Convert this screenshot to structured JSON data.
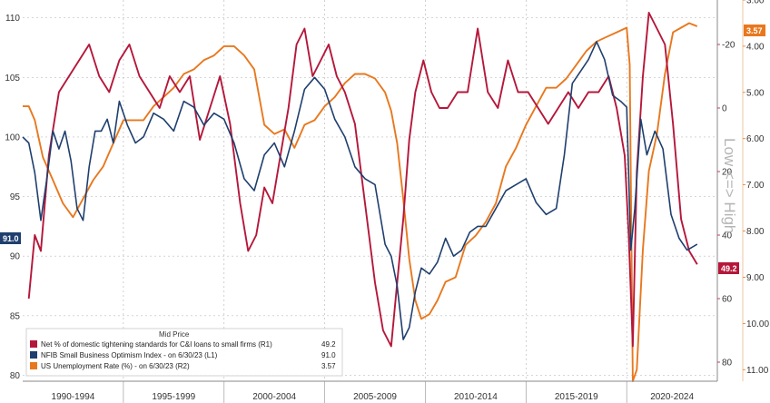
{
  "chart_data": {
    "type": "line",
    "x_labels": [
      "1990-1994",
      "1995-1999",
      "2000-2004",
      "2005-2009",
      "2010-2014",
      "2015-2019",
      "2020-2024"
    ],
    "x_range": [
      1990.0,
      2024.5
    ],
    "axis_l1": {
      "ticks": [
        "110",
        "105",
        "100",
        "95",
        "90",
        "85",
        "80"
      ],
      "range": [
        79.5,
        111.5
      ]
    },
    "axis_r1": {
      "ticks": [
        "-20",
        "0",
        "20",
        "40",
        "60",
        "80"
      ],
      "range": [
        -34,
        86
      ]
    },
    "axis_r2": {
      "ticks": [
        "3.00",
        "4.00",
        "5.00",
        "6.00",
        "7.00",
        "8.00",
        "9.00",
        "10.00",
        "11.00"
      ],
      "range": [
        3.0,
        11.25
      ],
      "inverted": true
    },
    "side_label": "Low <=> High",
    "legend": {
      "title": "Mid Price",
      "entries": [
        {
          "label": "Net % of domestic tightening standards for C&I loans to small firms  (R1)",
          "value": "49.2",
          "color": "#b5173a"
        },
        {
          "label": "NFIB Small Business Optimism Index  -  on 6/30/23  (L1)",
          "value": "91.0",
          "color": "#1f3f6e"
        },
        {
          "label": "US Unemployment Rate (%)  -  on 6/30/23  (R2)",
          "value": "3.57",
          "color": "#e8781e"
        }
      ]
    },
    "badges": {
      "nfib": "91.0",
      "tightening": "49.2",
      "unemployment": "3.57"
    },
    "series": [
      {
        "name": "NFIB Small Business Optimism Index",
        "axis": "L1",
        "color": "#1f3f6e",
        "x": [
          1990.0,
          1990.3,
          1990.6,
          1990.9,
          1991.2,
          1991.5,
          1991.8,
          1992.1,
          1992.4,
          1992.7,
          1993.0,
          1993.3,
          1993.6,
          1993.9,
          1994.2,
          1994.5,
          1994.8,
          1995.2,
          1995.6,
          1996.0,
          1996.5,
          1997.0,
          1997.5,
          1998.0,
          1998.5,
          1999.0,
          1999.5,
          2000.0,
          2000.5,
          2001.0,
          2001.5,
          2002.0,
          2002.5,
          2003.0,
          2003.5,
          2004.0,
          2004.5,
          2005.0,
          2005.5,
          2006.0,
          2006.5,
          2007.0,
          2007.5,
          2008.0,
          2008.3,
          2008.6,
          2008.9,
          2009.2,
          2009.5,
          2009.8,
          2010.2,
          2010.6,
          2011.0,
          2011.4,
          2011.8,
          2012.2,
          2012.6,
          2013.0,
          2013.5,
          2014.0,
          2014.5,
          2015.0,
          2015.5,
          2016.0,
          2016.5,
          2016.9,
          2017.3,
          2017.7,
          2018.1,
          2018.5,
          2018.9,
          2019.3,
          2019.7,
          2020.0,
          2020.2,
          2020.4,
          2020.7,
          2021.0,
          2021.4,
          2021.8,
          2022.2,
          2022.6,
          2023.0,
          2023.5
        ],
        "y": [
          100.0,
          99.5,
          97.0,
          93.0,
          96.5,
          100.5,
          99.0,
          100.5,
          98.0,
          94.0,
          93.0,
          97.5,
          100.5,
          100.5,
          101.5,
          99.5,
          103.0,
          101.0,
          99.5,
          100.0,
          102.0,
          101.5,
          100.5,
          103.0,
          102.5,
          101.0,
          102.0,
          101.5,
          99.5,
          96.5,
          95.5,
          98.5,
          99.5,
          97.5,
          100.5,
          104.0,
          105.0,
          104.0,
          101.5,
          100.0,
          97.5,
          96.5,
          96.0,
          91.0,
          90.0,
          87.5,
          83.0,
          84.0,
          87.0,
          89.0,
          88.5,
          89.5,
          91.5,
          90.0,
          90.5,
          92.0,
          92.5,
          92.5,
          94.0,
          95.5,
          96.0,
          96.5,
          94.5,
          93.5,
          94.0,
          98.5,
          104.5,
          105.5,
          106.5,
          108.0,
          106.5,
          103.5,
          103.0,
          102.5,
          90.5,
          94.0,
          101.5,
          98.5,
          100.5,
          99.0,
          93.5,
          91.5,
          90.5,
          91.0
        ]
      },
      {
        "name": "Net % of domestic tightening standards for C&I loans to small firms",
        "axis": "R1",
        "color": "#b5173a",
        "x": [
          1990.3,
          1990.6,
          1990.9,
          1991.3,
          1991.8,
          1992.3,
          1992.8,
          1993.3,
          1993.8,
          1994.3,
          1994.8,
          1995.3,
          1995.8,
          1996.3,
          1996.8,
          1997.3,
          1997.8,
          1998.3,
          1998.8,
          1999.3,
          1999.8,
          2000.3,
          2000.8,
          2001.2,
          2001.6,
          2002.0,
          2002.4,
          2002.8,
          2003.2,
          2003.6,
          2004.0,
          2004.4,
          2004.8,
          2005.2,
          2005.6,
          2006.0,
          2006.5,
          2007.0,
          2007.5,
          2007.9,
          2008.3,
          2008.6,
          2008.9,
          2009.2,
          2009.5,
          2009.9,
          2010.3,
          2010.7,
          2011.1,
          2011.6,
          2012.1,
          2012.6,
          2013.1,
          2013.6,
          2014.1,
          2014.6,
          2015.1,
          2015.6,
          2016.1,
          2016.6,
          2017.1,
          2017.6,
          2018.1,
          2018.6,
          2019.1,
          2019.5,
          2019.9,
          2020.1,
          2020.3,
          2020.5,
          2020.8,
          2021.1,
          2021.5,
          2021.9,
          2022.3,
          2022.7,
          2023.1,
          2023.5
        ],
        "y": [
          60.0,
          40.0,
          45.0,
          15.0,
          -5.0,
          -10.0,
          -15.0,
          -20.0,
          -10.0,
          -5.0,
          -15.0,
          -20.0,
          -10.0,
          -5.0,
          0.0,
          -10.0,
          -5.0,
          -10.0,
          10.0,
          0.0,
          -10.0,
          5.0,
          30.0,
          45.0,
          40.0,
          25.0,
          30.0,
          15.0,
          0.0,
          -20.0,
          -25.0,
          -10.0,
          -15.0,
          -20.0,
          -10.0,
          -5.0,
          5.0,
          30.0,
          55.0,
          70.0,
          75.0,
          55.0,
          35.0,
          10.0,
          -5.0,
          -15.0,
          -5.0,
          0.0,
          0.0,
          -5.0,
          -5.0,
          -25.0,
          -5.0,
          0.0,
          -15.0,
          -5.0,
          -5.0,
          0.0,
          5.0,
          0.0,
          -5.0,
          0.0,
          -5.0,
          -5.0,
          -10.0,
          0.0,
          15.0,
          40.0,
          75.0,
          20.0,
          -10.0,
          -30.0,
          -25.0,
          -20.0,
          5.0,
          35.0,
          45.0,
          49.2
        ]
      },
      {
        "name": "US Unemployment Rate (%)",
        "axis": "R2",
        "color": "#e8781e",
        "x": [
          1990.0,
          1990.3,
          1990.6,
          1991.0,
          1991.5,
          1992.0,
          1992.5,
          1993.0,
          1993.5,
          1994.0,
          1994.5,
          1995.0,
          1995.5,
          1996.0,
          1996.5,
          1997.0,
          1997.5,
          1998.0,
          1998.5,
          1999.0,
          1999.5,
          2000.0,
          2000.5,
          2001.0,
          2001.5,
          2002.0,
          2002.5,
          2003.0,
          2003.5,
          2004.0,
          2004.5,
          2005.0,
          2005.5,
          2006.0,
          2006.5,
          2007.0,
          2007.5,
          2008.0,
          2008.3,
          2008.6,
          2008.9,
          2009.2,
          2009.5,
          2009.8,
          2010.2,
          2010.6,
          2011.0,
          2011.5,
          2012.0,
          2012.5,
          2013.0,
          2013.5,
          2014.0,
          2014.5,
          2015.0,
          2015.5,
          2016.0,
          2016.5,
          2017.0,
          2017.5,
          2018.0,
          2018.5,
          2019.0,
          2019.5,
          2020.0,
          2020.15,
          2020.3,
          2020.5,
          2020.8,
          2021.1,
          2021.5,
          2021.9,
          2022.3,
          2022.7,
          2023.1,
          2023.5
        ],
        "y": [
          5.3,
          5.3,
          5.6,
          6.4,
          6.9,
          7.4,
          7.7,
          7.3,
          6.9,
          6.6,
          6.1,
          5.6,
          5.6,
          5.6,
          5.3,
          5.1,
          4.9,
          4.6,
          4.5,
          4.3,
          4.2,
          4.0,
          4.0,
          4.2,
          4.5,
          5.7,
          5.9,
          5.8,
          6.2,
          5.7,
          5.6,
          5.3,
          5.1,
          4.8,
          4.6,
          4.6,
          4.7,
          5.0,
          5.4,
          6.1,
          7.3,
          8.6,
          9.5,
          9.9,
          9.8,
          9.5,
          9.1,
          9.0,
          8.3,
          8.1,
          7.8,
          7.4,
          6.6,
          6.2,
          5.7,
          5.3,
          4.9,
          4.9,
          4.7,
          4.4,
          4.1,
          3.9,
          3.8,
          3.7,
          3.6,
          4.4,
          11.25,
          11.0,
          8.4,
          6.7,
          5.9,
          4.6,
          3.7,
          3.6,
          3.5,
          3.57
        ]
      }
    ]
  }
}
